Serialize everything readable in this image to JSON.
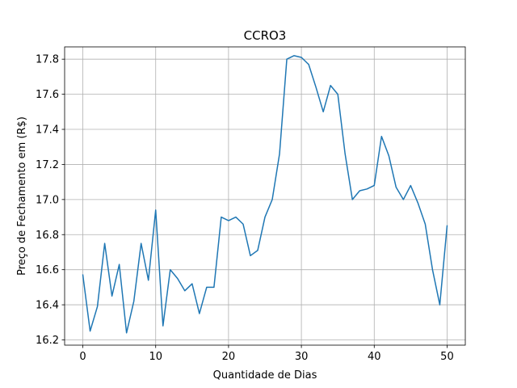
{
  "chart_data": {
    "type": "line",
    "title": "CCRO3",
    "xlabel": "Quantidade de Dias",
    "ylabel": "Preço de Fechamento em (R$)",
    "xlim": [
      -2.5,
      52.5
    ],
    "ylim": [
      16.17,
      17.87
    ],
    "grid": true,
    "x_ticks": [
      0,
      10,
      20,
      30,
      40,
      50
    ],
    "x_tick_labels": [
      "0",
      "10",
      "20",
      "30",
      "40",
      "50"
    ],
    "y_ticks": [
      16.2,
      16.4,
      16.6,
      16.8,
      17.0,
      17.2,
      17.4,
      17.6,
      17.8
    ],
    "y_tick_labels": [
      "16.2",
      "16.4",
      "16.6",
      "16.8",
      "17.0",
      "17.2",
      "17.4",
      "17.6",
      "17.8"
    ],
    "series": [
      {
        "color": "#1f77b4",
        "x": [
          0,
          1,
          2,
          3,
          4,
          5,
          6,
          7,
          8,
          9,
          10,
          11,
          12,
          13,
          14,
          15,
          16,
          17,
          18,
          19,
          20,
          21,
          22,
          23,
          24,
          25,
          26,
          27,
          28,
          29,
          30,
          31,
          32,
          33,
          34,
          35,
          36,
          37,
          38,
          39,
          40,
          41,
          42,
          43,
          44,
          45,
          46,
          47,
          48,
          49,
          50
        ],
        "y": [
          16.57,
          16.25,
          16.39,
          16.75,
          16.45,
          16.63,
          16.24,
          16.42,
          16.75,
          16.54,
          16.94,
          16.28,
          16.6,
          16.55,
          16.48,
          16.52,
          16.35,
          16.5,
          16.5,
          16.9,
          16.88,
          16.9,
          16.86,
          16.68,
          16.71,
          16.9,
          17.0,
          17.26,
          17.8,
          17.82,
          17.81,
          17.77,
          17.64,
          17.5,
          17.65,
          17.6,
          17.26,
          17.0,
          17.05,
          17.06,
          17.08,
          17.36,
          17.25,
          17.07,
          17.0,
          17.08,
          16.98,
          16.86,
          16.6,
          16.4,
          16.85
        ]
      }
    ]
  }
}
